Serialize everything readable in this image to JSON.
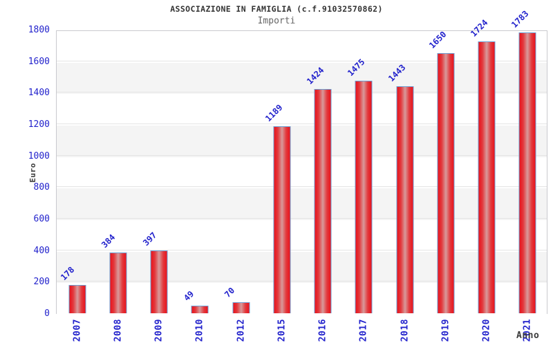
{
  "chart_data": {
    "type": "bar",
    "title": "ASSOCIAZIONE IN FAMIGLIA (c.f.91032570862)",
    "subtitle": "Importi",
    "xlabel": "Anno",
    "ylabel": "Euro",
    "categories": [
      "2007",
      "2008",
      "2009",
      "2010",
      "2012",
      "2015",
      "2016",
      "2017",
      "2018",
      "2019",
      "2020",
      "2021"
    ],
    "values": [
      178,
      384,
      397,
      49,
      70,
      1189,
      1424,
      1475,
      1443,
      1650,
      1724,
      1783
    ],
    "ylim": [
      0,
      1800
    ],
    "ytick_step": 200,
    "yticks": [
      0,
      200,
      400,
      600,
      800,
      1000,
      1200,
      1400,
      1600,
      1800
    ],
    "grid": "alternating-horizontal-bands",
    "legend": "none",
    "value_labels_rotation_deg": -45,
    "category_labels_rotation_deg": -90,
    "colors": {
      "bar_edge_red": "#e9131c",
      "bar_center_highlight": "#d89a9b",
      "bar_border_blue": "#6b9fd4",
      "label_blue": "#2222cc",
      "band_gray": "#f4f4f4",
      "band_white": "#ffffff",
      "gridline": "#e4e4e4",
      "plot_border": "#c9c9ce",
      "title_color": "#333333",
      "subtitle_color": "#666666",
      "axis_title_color": "#3a3a3a",
      "background": "#ffffff"
    }
  }
}
